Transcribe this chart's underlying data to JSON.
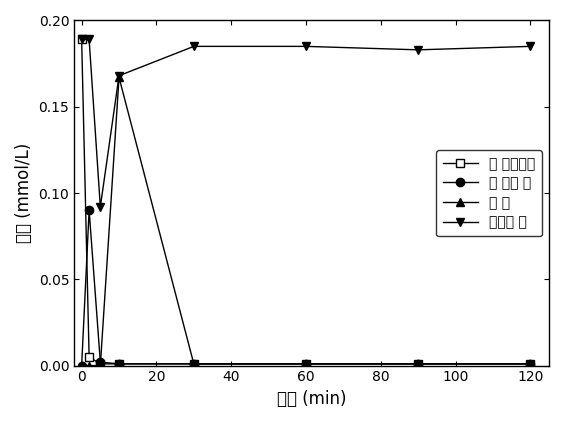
{
  "series": [
    {
      "label": "氯 代硝基苯",
      "x": [
        0,
        2,
        5,
        10,
        30,
        60,
        90,
        120
      ],
      "y": [
        0.189,
        0.005,
        0.001,
        0.001,
        0.001,
        0.001,
        0.001,
        0.001
      ],
      "marker": "s",
      "markersize": 6,
      "linestyle": "-"
    },
    {
      "label": "氯 代苯 胺",
      "x": [
        0,
        2,
        5,
        10,
        30,
        60,
        90,
        120
      ],
      "y": [
        0.0,
        0.09,
        0.002,
        0.001,
        0.001,
        0.001,
        0.001,
        0.001
      ],
      "marker": "o",
      "markersize": 6,
      "linestyle": "-"
    },
    {
      "label": "苯 胺",
      "x": [
        0,
        2,
        5,
        10,
        30,
        60,
        90,
        120
      ],
      "y": [
        0.0,
        0.0,
        0.0,
        0.167,
        0.001,
        0.001,
        0.001,
        0.001
      ],
      "marker": "^",
      "markersize": 6,
      "linestyle": "-"
    },
    {
      "label": "物料平 衡",
      "x": [
        0,
        2,
        5,
        10,
        30,
        60,
        90,
        120
      ],
      "y": [
        0.189,
        0.189,
        0.092,
        0.168,
        0.185,
        0.185,
        0.183,
        0.185
      ],
      "marker": "v",
      "markersize": 6,
      "linestyle": "-"
    }
  ],
  "xlabel": "时间 (min)",
  "ylabel": "浓度 (mmol/L)",
  "xlim": [
    -2,
    125
  ],
  "ylim": [
    0,
    0.2
  ],
  "yticks": [
    0.0,
    0.05,
    0.1,
    0.15,
    0.2
  ],
  "xticks": [
    0,
    20,
    40,
    60,
    80,
    100,
    120
  ],
  "legend_loc": "center right",
  "color": "black",
  "background_color": "#ffffff",
  "figure_size": [
    5.64,
    4.23
  ],
  "dpi": 100
}
